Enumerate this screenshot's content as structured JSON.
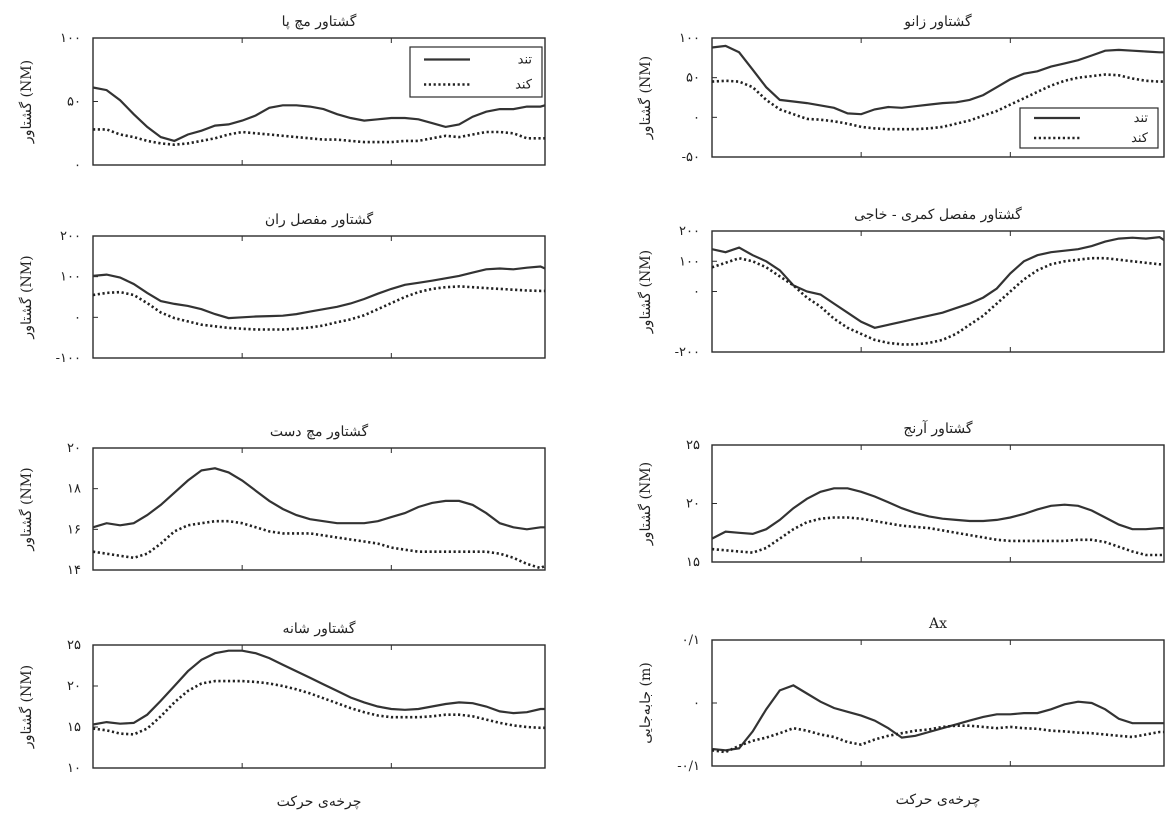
{
  "chart_data": [
    {
      "type": "line",
      "title": "گشتاور مچ پا",
      "ylabel": "گشتاور (NM)",
      "xlabel": "",
      "ylim": [
        0,
        100
      ],
      "yticks": [
        {
          "v": 100,
          "label": "۱۰۰"
        },
        {
          "v": 50,
          "label": "۵۰"
        },
        {
          "v": 0,
          "label": "۰"
        }
      ],
      "x": [
        0,
        3,
        6,
        9,
        12,
        15,
        18,
        21,
        24,
        27,
        30,
        33,
        36,
        39,
        42,
        45,
        48,
        51,
        54,
        57,
        60,
        63,
        66,
        69,
        72,
        75,
        78,
        81,
        84,
        87,
        90,
        93,
        96,
        99,
        100
      ],
      "series": [
        {
          "name": "تند",
          "style": "solid",
          "values": [
            61,
            59,
            51,
            40,
            30,
            22,
            19,
            24,
            27,
            31,
            32,
            35,
            39,
            45,
            47,
            47,
            46,
            44,
            40,
            37,
            35,
            36,
            37,
            37,
            36,
            33,
            30,
            32,
            38,
            42,
            44,
            44,
            46,
            46,
            47
          ]
        },
        {
          "name": "کند",
          "style": "dotted",
          "values": [
            28,
            28,
            24,
            22,
            19,
            17,
            16,
            17,
            19,
            21,
            24,
            26,
            25,
            24,
            23,
            22,
            21,
            20,
            20,
            19,
            18,
            18,
            18,
            19,
            19,
            21,
            23,
            22,
            24,
            26,
            26,
            25,
            21,
            21,
            21
          ]
        }
      ],
      "legend": "top-right"
    },
    {
      "type": "line",
      "title": "گشتاور زانو",
      "ylabel": "گشتاور (NM)",
      "xlabel": "",
      "ylim": [
        -50,
        100
      ],
      "yticks": [
        {
          "v": 100,
          "label": "۱۰۰"
        },
        {
          "v": 50,
          "label": "۵۰"
        },
        {
          "v": 0,
          "label": "۰"
        },
        {
          "v": -50,
          "label": "-۵۰"
        }
      ],
      "x": [
        0,
        3,
        6,
        9,
        12,
        15,
        18,
        21,
        24,
        27,
        30,
        33,
        36,
        39,
        42,
        45,
        48,
        51,
        54,
        57,
        60,
        63,
        66,
        69,
        72,
        75,
        78,
        81,
        84,
        87,
        90,
        93,
        96,
        99,
        100
      ],
      "series": [
        {
          "name": "تند",
          "style": "solid",
          "values": [
            88,
            90,
            82,
            60,
            38,
            22,
            20,
            18,
            15,
            12,
            5,
            4,
            10,
            13,
            12,
            14,
            16,
            18,
            19,
            22,
            28,
            38,
            48,
            55,
            58,
            64,
            68,
            72,
            78,
            84,
            85,
            84,
            83,
            82,
            82
          ]
        },
        {
          "name": "کند",
          "style": "dotted",
          "values": [
            45,
            46,
            45,
            38,
            22,
            10,
            4,
            -2,
            -3,
            -5,
            -8,
            -12,
            -14,
            -15,
            -15,
            -15,
            -14,
            -12,
            -8,
            -4,
            2,
            8,
            16,
            24,
            32,
            40,
            46,
            50,
            52,
            54,
            53,
            49,
            46,
            45,
            45
          ]
        }
      ],
      "legend": "bottom-right"
    },
    {
      "type": "line",
      "title": "گشتاور مفصل ران",
      "ylabel": "گشتاور (NM)",
      "xlabel": "",
      "ylim": [
        -100,
        200
      ],
      "yticks": [
        {
          "v": 200,
          "label": "۲۰۰"
        },
        {
          "v": 100,
          "label": "۱۰۰"
        },
        {
          "v": 0,
          "label": "۰"
        },
        {
          "v": -100,
          "label": "-۱۰۰"
        }
      ],
      "x": [
        0,
        3,
        6,
        9,
        12,
        15,
        18,
        21,
        24,
        27,
        30,
        33,
        36,
        39,
        42,
        45,
        48,
        51,
        54,
        57,
        60,
        63,
        66,
        69,
        72,
        75,
        78,
        81,
        84,
        87,
        90,
        93,
        96,
        99,
        100
      ],
      "series": [
        {
          "name": "تند",
          "style": "solid",
          "values": [
            102,
            105,
            98,
            82,
            60,
            40,
            33,
            28,
            20,
            8,
            -2,
            0,
            2,
            3,
            4,
            8,
            14,
            20,
            26,
            34,
            45,
            58,
            70,
            80,
            85,
            90,
            96,
            102,
            110,
            118,
            120,
            118,
            122,
            125,
            120
          ]
        },
        {
          "name": "کند",
          "style": "dotted",
          "values": [
            55,
            60,
            62,
            55,
            35,
            12,
            -2,
            -10,
            -18,
            -22,
            -26,
            -28,
            -30,
            -30,
            -30,
            -28,
            -25,
            -20,
            -12,
            -5,
            5,
            20,
            35,
            50,
            62,
            70,
            74,
            76,
            74,
            72,
            70,
            68,
            66,
            65,
            65
          ]
        }
      ]
    },
    {
      "type": "line",
      "title": "گشتاور مفصل کمری - خاجی",
      "ylabel": "گشتاور (NM)",
      "xlabel": "",
      "ylim": [
        -200,
        200
      ],
      "yticks": [
        {
          "v": 200,
          "label": "۲۰۰"
        },
        {
          "v": 100,
          "label": "۱۰۰"
        },
        {
          "v": 0,
          "label": "۰"
        },
        {
          "v": -200,
          "label": "-۲۰۰"
        }
      ],
      "x": [
        0,
        3,
        6,
        9,
        12,
        15,
        18,
        21,
        24,
        27,
        30,
        33,
        36,
        39,
        42,
        45,
        48,
        51,
        54,
        57,
        60,
        63,
        66,
        69,
        72,
        75,
        78,
        81,
        84,
        87,
        90,
        93,
        96,
        99,
        100
      ],
      "series": [
        {
          "name": "تند",
          "style": "solid",
          "values": [
            140,
            130,
            145,
            120,
            100,
            70,
            20,
            0,
            -10,
            -40,
            -70,
            -100,
            -120,
            -110,
            -100,
            -90,
            -80,
            -70,
            -55,
            -40,
            -20,
            10,
            60,
            100,
            120,
            130,
            135,
            140,
            150,
            165,
            175,
            178,
            175,
            180,
            170
          ]
        },
        {
          "name": "کند",
          "style": "dotted",
          "values": [
            80,
            95,
            110,
            100,
            80,
            50,
            20,
            -20,
            -50,
            -90,
            -120,
            -140,
            -160,
            -170,
            -175,
            -175,
            -170,
            -160,
            -140,
            -110,
            -80,
            -40,
            0,
            40,
            70,
            90,
            100,
            105,
            110,
            110,
            105,
            100,
            95,
            90,
            90
          ]
        }
      ]
    },
    {
      "type": "line",
      "title": "گشتاور مچ دست",
      "ylabel": "گشتاور (NM)",
      "xlabel": "",
      "ylim": [
        14,
        20
      ],
      "yticks": [
        {
          "v": 20,
          "label": "۲۰"
        },
        {
          "v": 18,
          "label": "۱۸"
        },
        {
          "v": 16,
          "label": "۱۶"
        },
        {
          "v": 14,
          "label": "۱۴"
        }
      ],
      "x": [
        0,
        3,
        6,
        9,
        12,
        15,
        18,
        21,
        24,
        27,
        30,
        33,
        36,
        39,
        42,
        45,
        48,
        51,
        54,
        57,
        60,
        63,
        66,
        69,
        72,
        75,
        78,
        81,
        84,
        87,
        90,
        93,
        96,
        99,
        100
      ],
      "series": [
        {
          "name": "تند",
          "style": "solid",
          "values": [
            16.1,
            16.3,
            16.2,
            16.3,
            16.7,
            17.2,
            17.8,
            18.4,
            18.9,
            19.0,
            18.8,
            18.4,
            17.9,
            17.4,
            17.0,
            16.7,
            16.5,
            16.4,
            16.3,
            16.3,
            16.3,
            16.4,
            16.6,
            16.8,
            17.1,
            17.3,
            17.4,
            17.4,
            17.2,
            16.8,
            16.3,
            16.1,
            16.0,
            16.1,
            16.1
          ]
        },
        {
          "name": "کند",
          "style": "dotted",
          "values": [
            14.9,
            14.8,
            14.7,
            14.6,
            14.8,
            15.3,
            15.9,
            16.2,
            16.3,
            16.4,
            16.4,
            16.3,
            16.1,
            15.9,
            15.8,
            15.8,
            15.8,
            15.7,
            15.6,
            15.5,
            15.4,
            15.3,
            15.1,
            15.0,
            14.9,
            14.9,
            14.9,
            14.9,
            14.9,
            14.9,
            14.8,
            14.6,
            14.3,
            14.1,
            14.2
          ]
        }
      ]
    },
    {
      "type": "line",
      "title": "گشتاور آرنج",
      "ylabel": "گشتاور (NM)",
      "xlabel": "",
      "ylim": [
        15,
        25
      ],
      "yticks": [
        {
          "v": 25,
          "label": "۲۵"
        },
        {
          "v": 20,
          "label": "۲۰"
        },
        {
          "v": 15,
          "label": "۱۵"
        }
      ],
      "x": [
        0,
        3,
        6,
        9,
        12,
        15,
        18,
        21,
        24,
        27,
        30,
        33,
        36,
        39,
        42,
        45,
        48,
        51,
        54,
        57,
        60,
        63,
        66,
        69,
        72,
        75,
        78,
        81,
        84,
        87,
        90,
        93,
        96,
        99,
        100
      ],
      "series": [
        {
          "name": "تند",
          "style": "solid",
          "values": [
            17.0,
            17.6,
            17.5,
            17.4,
            17.8,
            18.6,
            19.6,
            20.4,
            21.0,
            21.3,
            21.3,
            21.0,
            20.6,
            20.1,
            19.6,
            19.2,
            18.9,
            18.7,
            18.6,
            18.5,
            18.5,
            18.6,
            18.8,
            19.1,
            19.5,
            19.8,
            19.9,
            19.8,
            19.4,
            18.8,
            18.2,
            17.8,
            17.8,
            17.9,
            17.9
          ]
        },
        {
          "name": "کند",
          "style": "dotted",
          "values": [
            16.1,
            16.0,
            15.9,
            15.8,
            16.2,
            17.0,
            17.8,
            18.4,
            18.7,
            18.8,
            18.8,
            18.7,
            18.5,
            18.3,
            18.1,
            18.0,
            17.9,
            17.7,
            17.5,
            17.3,
            17.1,
            16.9,
            16.8,
            16.8,
            16.8,
            16.8,
            16.8,
            16.9,
            16.9,
            16.7,
            16.3,
            15.9,
            15.6,
            15.6,
            15.6
          ]
        }
      ]
    },
    {
      "type": "line",
      "title": "گشتاور شانه",
      "ylabel": "گشتاور (NM)",
      "xlabel": "چرخه‌ی حرکت",
      "ylim": [
        10,
        25
      ],
      "yticks": [
        {
          "v": 25,
          "label": "۲۵"
        },
        {
          "v": 20,
          "label": "۲۰"
        },
        {
          "v": 15,
          "label": "۱۵"
        },
        {
          "v": 10,
          "label": "۱۰"
        }
      ],
      "x": [
        0,
        3,
        6,
        9,
        12,
        15,
        18,
        21,
        24,
        27,
        30,
        33,
        36,
        39,
        42,
        45,
        48,
        51,
        54,
        57,
        60,
        63,
        66,
        69,
        72,
        75,
        78,
        81,
        84,
        87,
        90,
        93,
        96,
        99,
        100
      ],
      "series": [
        {
          "name": "تند",
          "style": "solid",
          "values": [
            15.3,
            15.6,
            15.4,
            15.5,
            16.5,
            18.2,
            20.0,
            21.8,
            23.2,
            24.0,
            24.3,
            24.3,
            24.0,
            23.4,
            22.6,
            21.8,
            21.0,
            20.2,
            19.4,
            18.6,
            18.0,
            17.5,
            17.2,
            17.1,
            17.2,
            17.5,
            17.8,
            18.0,
            17.9,
            17.5,
            16.9,
            16.7,
            16.8,
            17.2,
            17.2
          ]
        },
        {
          "name": "کند",
          "style": "dotted",
          "values": [
            14.8,
            14.6,
            14.2,
            14.1,
            14.8,
            16.3,
            18.0,
            19.4,
            20.3,
            20.6,
            20.6,
            20.6,
            20.5,
            20.3,
            20.0,
            19.6,
            19.1,
            18.5,
            17.9,
            17.3,
            16.8,
            16.4,
            16.2,
            16.2,
            16.2,
            16.3,
            16.5,
            16.5,
            16.3,
            15.9,
            15.5,
            15.2,
            15.0,
            14.9,
            14.9
          ]
        }
      ]
    },
    {
      "type": "line",
      "title": "Ax",
      "ylabel": "جابه‌جایی (m)",
      "xlabel": "چرخه‌ی حرکت",
      "ylim": [
        -0.1,
        0.1
      ],
      "yticks": [
        {
          "v": 0.1,
          "label": "۰/۱"
        },
        {
          "v": 0,
          "label": "۰"
        },
        {
          "v": -0.1,
          "label": "-۰/۱"
        }
      ],
      "x": [
        0,
        3,
        6,
        9,
        12,
        15,
        18,
        21,
        24,
        27,
        30,
        33,
        36,
        39,
        42,
        45,
        48,
        51,
        54,
        57,
        60,
        63,
        66,
        69,
        72,
        75,
        78,
        81,
        84,
        87,
        90,
        93,
        96,
        99,
        100
      ],
      "series": [
        {
          "name": "تند",
          "style": "solid",
          "values": [
            -0.073,
            -0.075,
            -0.072,
            -0.045,
            -0.01,
            0.02,
            0.028,
            0.015,
            0.002,
            -0.008,
            -0.014,
            -0.02,
            -0.028,
            -0.04,
            -0.055,
            -0.052,
            -0.046,
            -0.04,
            -0.034,
            -0.028,
            -0.022,
            -0.018,
            -0.018,
            -0.016,
            -0.016,
            -0.01,
            -0.002,
            0.002,
            0.0,
            -0.01,
            -0.025,
            -0.032,
            -0.032,
            -0.032,
            -0.032
          ]
        },
        {
          "name": "کند",
          "style": "dotted",
          "values": [
            -0.075,
            -0.078,
            -0.068,
            -0.06,
            -0.055,
            -0.048,
            -0.04,
            -0.044,
            -0.05,
            -0.054,
            -0.062,
            -0.066,
            -0.058,
            -0.052,
            -0.048,
            -0.044,
            -0.042,
            -0.038,
            -0.036,
            -0.036,
            -0.038,
            -0.04,
            -0.038,
            -0.04,
            -0.041,
            -0.044,
            -0.045,
            -0.047,
            -0.048,
            -0.05,
            -0.052,
            -0.054,
            -0.05,
            -0.046,
            -0.046
          ]
        }
      ]
    }
  ]
}
